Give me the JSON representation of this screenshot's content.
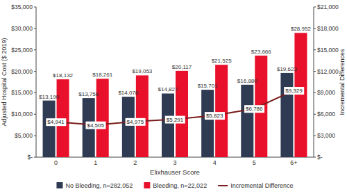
{
  "chart_data": {
    "type": "bar",
    "x_label": "Elixhauser Score",
    "y_label": "Adjusted Hospital Cost ($ 2019)",
    "y2_label": "Incremental Differences",
    "categories": [
      "0",
      "1",
      "2",
      "3",
      "4",
      "5",
      "6+"
    ],
    "series": [
      {
        "name": "No Bleeding, n=282,052",
        "color": "#2e3b52",
        "values": [
          13190,
          13756,
          14078,
          14827,
          15701,
          16880,
          19623
        ],
        "value_labels": [
          "$13,190",
          "$13,756",
          "$14,078",
          "$14,827",
          "$15,701",
          "$16,880",
          "$19,623"
        ]
      },
      {
        "name": "Bleeding, n=22,022",
        "color": "#e8102a",
        "values": [
          18132,
          18261,
          19053,
          20117,
          21525,
          23666,
          28952
        ],
        "value_labels": [
          "$18,132",
          "$18,261",
          "$19,053",
          "$20,117",
          "$21,525",
          "$23,666",
          "$28,952"
        ]
      },
      {
        "name": "Incremental Difference",
        "type": "line",
        "axis": "y2",
        "color": "#7b1c1c",
        "values": [
          4941,
          4505,
          4975,
          5291,
          5823,
          6786,
          9329
        ],
        "value_labels": [
          "$4,941",
          "$4,505",
          "$4,975",
          "$5,291",
          "$5,823",
          "$6,786",
          "$9,329"
        ]
      }
    ],
    "ylim": [
      0,
      35000
    ],
    "yticks": [
      {
        "value": 0,
        "label": "$-"
      },
      {
        "value": 5000,
        "label": "$5,000"
      },
      {
        "value": 10000,
        "label": "$10,000"
      },
      {
        "value": 15000,
        "label": "$15,000"
      },
      {
        "value": 20000,
        "label": "$20,000"
      },
      {
        "value": 25000,
        "label": "$25,000"
      },
      {
        "value": 30000,
        "label": "$30,000"
      },
      {
        "value": 35000,
        "label": "$35,000"
      }
    ],
    "y2lim": [
      0,
      21000
    ],
    "y2ticks": [
      {
        "value": 0,
        "label": "$-"
      },
      {
        "value": 3000,
        "label": "$3,000"
      },
      {
        "value": 6000,
        "label": "$6,000"
      },
      {
        "value": 9000,
        "label": "$9,000"
      },
      {
        "value": 12000,
        "label": "$12,000"
      },
      {
        "value": 15000,
        "label": "$15,000"
      },
      {
        "value": 18000,
        "label": "$18,000"
      },
      {
        "value": 21000,
        "label": "$21,000"
      }
    ],
    "grid": false,
    "data_labels": true,
    "legend": "bottom"
  }
}
